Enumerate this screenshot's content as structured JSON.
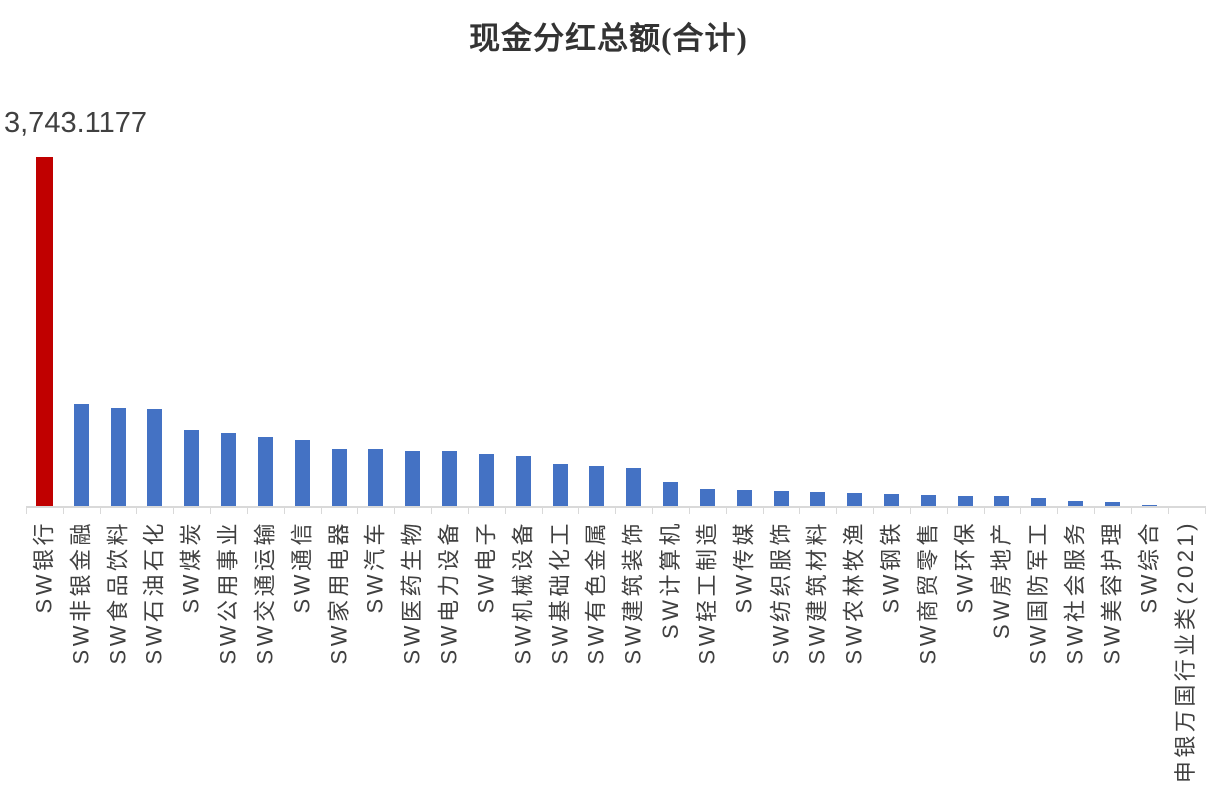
{
  "title": "现金分红总额(合计)",
  "data_label": {
    "text": "3,743.1177",
    "category": "SW银行"
  },
  "colors": {
    "highlight_bar": "#c00000",
    "bar": "#4472c4",
    "axis": "#d9d9d9",
    "title_text": "#333333",
    "label_text": "#404040",
    "background": "#ffffff"
  },
  "chart_data": {
    "type": "bar",
    "title": "现金分红总额(合计)",
    "xlabel": "",
    "ylabel": "",
    "grid": false,
    "legend": false,
    "ylim": [
      0,
      3743.1177
    ],
    "highlight_index": 0,
    "highlight_color": "#c00000",
    "bar_color": "#4472c4",
    "data_labels": {
      "0": "3,743.1177"
    },
    "categories": [
      "SW银行",
      "SW非银金融",
      "SW食品饮料",
      "SW石油石化",
      "SW煤炭",
      "SW公用事业",
      "SW交通运输",
      "SW通信",
      "SW家用电器",
      "SW汽车",
      "SW医药生物",
      "SW电力设备",
      "SW电子",
      "SW机械设备",
      "SW基础化工",
      "SW有色金属",
      "SW建筑装饰",
      "SW计算机",
      "SW轻工制造",
      "SW传媒",
      "SW纺织服饰",
      "SW建筑材料",
      "SW农林牧渔",
      "SW钢铁",
      "SW商贸零售",
      "SW环保",
      "SW房地产",
      "SW国防军工",
      "SW社会服务",
      "SW美容护理",
      "SW综合",
      "申银万国行业类(2021)"
    ],
    "values": [
      3743.1177,
      1095,
      1056,
      1035,
      818,
      782,
      740,
      708,
      616,
      611,
      594,
      589,
      557,
      533,
      455,
      427,
      412,
      261,
      180,
      168,
      161,
      147,
      135,
      133,
      114,
      112,
      110,
      89,
      54,
      40,
      14,
      2
    ]
  }
}
